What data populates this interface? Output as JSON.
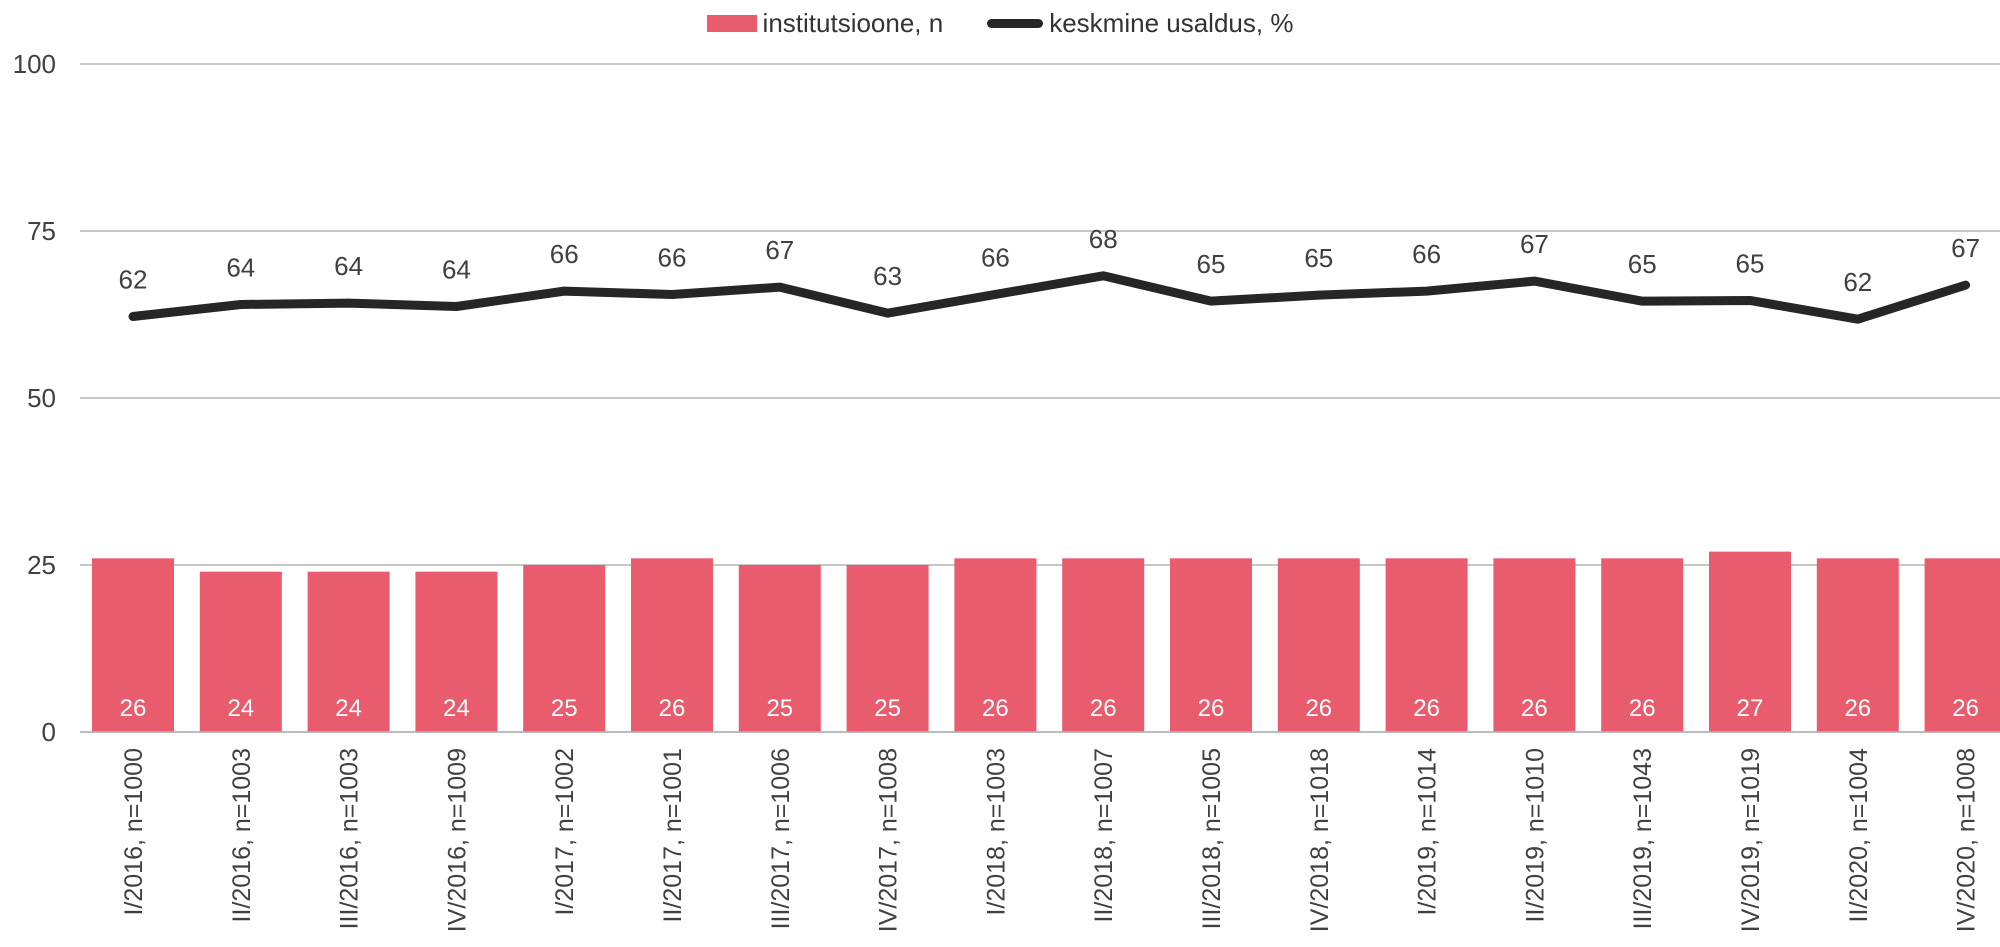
{
  "legend": {
    "bar_label": "institutsioone, n",
    "line_label": "keskmine usaldus, %"
  },
  "colors": {
    "bar": "#e85c6e",
    "line": "#262626",
    "grid": "#b3b3b3",
    "text": "#404040",
    "bar_label_text": "#ffffff"
  },
  "chart_data": {
    "type": "bar",
    "title": "",
    "xlabel": "",
    "ylabel": "",
    "ylim": [
      0,
      100
    ],
    "yticks": [
      0,
      25,
      50,
      75,
      100
    ],
    "grid": true,
    "legend_position": "top-center",
    "categories": [
      "I/2016, n=1000",
      "II/2016, n=1003",
      "III/2016, n=1003",
      "IV/2016, n=1009",
      "I/2017, n=1002",
      "II/2017, n=1001",
      "III/2017, n=1006",
      "IV/2017, n=1008",
      "I/2018, n=1003",
      "II/2018, n=1007",
      "III/2018, n=1005",
      "IV/2018, n=1018",
      "I/2019, n=1014",
      "II/2019, n=1010",
      "III/2019, n=1043",
      "IV/2019, n=1019",
      "II/2020, n=1004",
      "IV/2020, n=1008"
    ],
    "series": [
      {
        "name": "institutsioone, n",
        "type": "bar",
        "values": [
          26,
          24,
          24,
          24,
          25,
          26,
          25,
          25,
          26,
          26,
          26,
          26,
          26,
          26,
          26,
          27,
          26,
          26
        ]
      },
      {
        "name": "keskmine usaldus, %",
        "type": "line",
        "values": [
          62.2,
          64.0,
          64.2,
          63.7,
          66.0,
          65.5,
          66.6,
          62.7,
          65.5,
          68.3,
          64.5,
          65.4,
          66.0,
          67.5,
          64.5,
          64.6,
          61.8,
          66.9
        ],
        "labels": [
          "62",
          "64",
          "64",
          "64",
          "66",
          "66",
          "67",
          "63",
          "66",
          "68",
          "65",
          "65",
          "66",
          "67",
          "65",
          "65",
          "62",
          "67"
        ]
      }
    ]
  }
}
